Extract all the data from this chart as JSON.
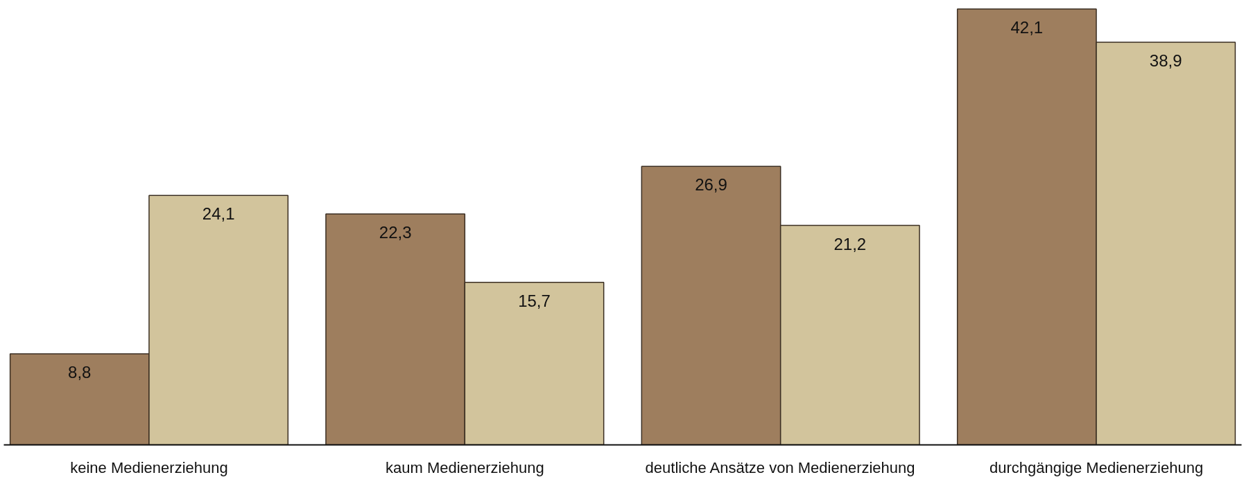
{
  "chart_data": {
    "type": "bar",
    "categories": [
      "keine Medienerziehung",
      "kaum Medienerziehung",
      "deutliche Ansätze von Medienerziehung",
      "durchgängige Medienerziehung"
    ],
    "series": [
      {
        "color": "#9e7e5e",
        "values": [
          8.8,
          22.3,
          26.9,
          42.1
        ],
        "value_labels": [
          "8,8",
          "22,3",
          "26,9",
          "42,1"
        ]
      },
      {
        "color": "#d2c49c",
        "values": [
          24.1,
          15.7,
          21.2,
          38.9
        ],
        "value_labels": [
          "24,1",
          "15,7",
          "21,2",
          "38,9"
        ]
      }
    ],
    "grid": false,
    "tick_labels": "x"
  }
}
